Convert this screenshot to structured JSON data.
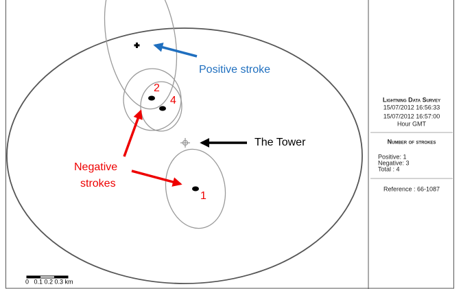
{
  "map": {
    "annotations": {
      "positive": "Positive stroke",
      "tower": "The Tower",
      "negative_1": "Negative",
      "negative_2": "strokes"
    },
    "stroke_labels": [
      "2",
      "4",
      "1"
    ],
    "scale_label": "0   0.1 0.2 0.3 km"
  },
  "panel": {
    "title": "Lightning Data Survey",
    "lines": [
      "15/07/2012 16:56:33",
      "15/07/2012 16:57:00",
      "Hour GMT"
    ],
    "strokes_title": "Number of strokes",
    "counts": [
      "Positive: 1",
      "Negative: 3",
      "Total : 4"
    ],
    "reference": "Reference : 66-1087"
  }
}
